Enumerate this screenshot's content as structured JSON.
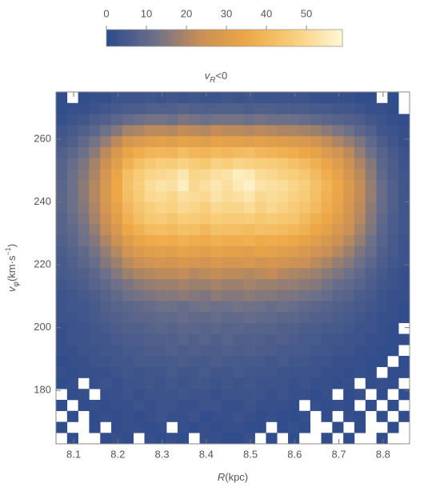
{
  "chart_data": {
    "type": "heatmap",
    "title": {
      "main": "v",
      "sub": "R",
      "tail": "<0"
    },
    "x_label": {
      "main": "R",
      "tail": "(kpc)"
    },
    "y_label": {
      "main": "v",
      "sub": "φ",
      "unit": "(km·s",
      "sup": "−1",
      "close": ")"
    },
    "xlim": [
      8.06,
      8.86
    ],
    "ylim": [
      163,
      275
    ],
    "xticks": [
      8.1,
      8.2,
      8.3,
      8.4,
      8.5,
      8.6,
      8.7,
      8.8
    ],
    "yticks": [
      180,
      200,
      220,
      240,
      260
    ],
    "x_edges": [
      8.06,
      8.085,
      8.11,
      8.135,
      8.16,
      8.185,
      8.21,
      8.235,
      8.26,
      8.285,
      8.31,
      8.335,
      8.36,
      8.385,
      8.41,
      8.435,
      8.46,
      8.485,
      8.51,
      8.535,
      8.56,
      8.585,
      8.61,
      8.635,
      8.66,
      8.685,
      8.71,
      8.735,
      8.76,
      8.785,
      8.81,
      8.835,
      8.86
    ],
    "y_edges": [
      163,
      166.5,
      170,
      173.5,
      177,
      180.5,
      184,
      187.5,
      191,
      194.5,
      198,
      201.5,
      205,
      208.5,
      212,
      215.5,
      219,
      222.5,
      226,
      229.5,
      233,
      236.5,
      240,
      243.5,
      247,
      250.5,
      254,
      257.5,
      261,
      264.5,
      268,
      271.5,
      275
    ],
    "colorbar": {
      "lim": [
        0,
        59
      ],
      "ticks": [
        0,
        10,
        20,
        30,
        40,
        50
      ]
    },
    "colorscale": [
      "#2c4a8c",
      "#6a6f8a",
      "#c98f55",
      "#eea847",
      "#f8cf7c",
      "#fff7d6"
    ],
    "values": [
      [
        null,
        1,
        null,
        null,
        1,
        2,
        1,
        null,
        2,
        1,
        2,
        1,
        null,
        2,
        2,
        1,
        1,
        2,
        null,
        1,
        null,
        1,
        null,
        null,
        1,
        null,
        1,
        null,
        null,
        1,
        null,
        null
      ],
      [
        1,
        null,
        null,
        1,
        null,
        1,
        2,
        2,
        1,
        2,
        null,
        2,
        1,
        2,
        1,
        2,
        2,
        1,
        1,
        null,
        1,
        2,
        1,
        null,
        null,
        1,
        null,
        1,
        null,
        null,
        1,
        null
      ],
      [
        null,
        1,
        null,
        1,
        2,
        1,
        2,
        1,
        2,
        3,
        2,
        2,
        3,
        1,
        2,
        2,
        3,
        2,
        1,
        2,
        1,
        1,
        2,
        null,
        1,
        null,
        2,
        1,
        null,
        1,
        null,
        1
      ],
      [
        1,
        null,
        1,
        2,
        1,
        2,
        2,
        3,
        2,
        3,
        3,
        2,
        2,
        3,
        3,
        2,
        2,
        3,
        2,
        2,
        2,
        1,
        null,
        2,
        1,
        2,
        1,
        null,
        1,
        null,
        1,
        null
      ],
      [
        null,
        1,
        2,
        null,
        2,
        2,
        3,
        2,
        3,
        3,
        3,
        4,
        3,
        3,
        2,
        3,
        3,
        3,
        3,
        2,
        3,
        2,
        2,
        1,
        2,
        null,
        1,
        2,
        null,
        1,
        null,
        1
      ],
      [
        1,
        2,
        null,
        2,
        3,
        2,
        3,
        3,
        4,
        3,
        4,
        3,
        4,
        4,
        3,
        4,
        3,
        4,
        3,
        3,
        3,
        2,
        3,
        2,
        2,
        1,
        2,
        null,
        1,
        2,
        1,
        null
      ],
      [
        2,
        1,
        2,
        2,
        2,
        3,
        4,
        3,
        4,
        4,
        5,
        4,
        4,
        5,
        4,
        4,
        5,
        4,
        4,
        4,
        3,
        3,
        3,
        3,
        2,
        2,
        1,
        2,
        1,
        null,
        1,
        1
      ],
      [
        1,
        2,
        2,
        3,
        3,
        4,
        4,
        5,
        5,
        5,
        5,
        6,
        5,
        5,
        6,
        5,
        5,
        5,
        5,
        4,
        5,
        4,
        4,
        3,
        3,
        2,
        2,
        2,
        1,
        1,
        null,
        1
      ],
      [
        2,
        2,
        3,
        3,
        4,
        4,
        5,
        5,
        6,
        6,
        7,
        6,
        7,
        6,
        6,
        7,
        6,
        7,
        6,
        6,
        5,
        5,
        5,
        4,
        4,
        3,
        3,
        2,
        2,
        1,
        1,
        null
      ],
      [
        2,
        3,
        3,
        4,
        4,
        5,
        6,
        6,
        7,
        7,
        7,
        8,
        7,
        8,
        7,
        8,
        7,
        7,
        7,
        6,
        7,
        6,
        5,
        5,
        4,
        4,
        3,
        3,
        2,
        2,
        1,
        1
      ],
      [
        2,
        3,
        3,
        4,
        5,
        6,
        7,
        7,
        8,
        9,
        8,
        9,
        9,
        8,
        9,
        8,
        9,
        8,
        8,
        8,
        7,
        7,
        6,
        6,
        5,
        5,
        4,
        3,
        3,
        2,
        1,
        null
      ],
      [
        3,
        3,
        4,
        5,
        6,
        7,
        8,
        9,
        9,
        10,
        10,
        11,
        10,
        10,
        11,
        10,
        10,
        11,
        10,
        10,
        9,
        9,
        8,
        7,
        7,
        6,
        5,
        4,
        3,
        2,
        2,
        1
      ],
      [
        3,
        4,
        4,
        5,
        7,
        8,
        9,
        10,
        11,
        12,
        12,
        11,
        12,
        13,
        12,
        12,
        13,
        12,
        12,
        11,
        12,
        11,
        10,
        9,
        8,
        7,
        6,
        5,
        4,
        3,
        2,
        1
      ],
      [
        3,
        4,
        5,
        6,
        8,
        10,
        12,
        13,
        14,
        15,
        15,
        16,
        15,
        14,
        16,
        15,
        15,
        16,
        15,
        15,
        14,
        14,
        13,
        12,
        11,
        9,
        8,
        6,
        5,
        3,
        2,
        2
      ],
      [
        4,
        5,
        6,
        8,
        10,
        12,
        14,
        16,
        17,
        18,
        18,
        19,
        18,
        18,
        19,
        18,
        18,
        19,
        18,
        18,
        17,
        17,
        16,
        15,
        13,
        11,
        10,
        8,
        6,
        4,
        3,
        2
      ],
      [
        5,
        6,
        7,
        9,
        12,
        15,
        18,
        20,
        21,
        22,
        22,
        23,
        21,
        22,
        23,
        22,
        22,
        21,
        22,
        23,
        21,
        20,
        19,
        18,
        16,
        14,
        12,
        10,
        7,
        5,
        3,
        2
      ],
      [
        5,
        7,
        9,
        11,
        15,
        18,
        22,
        24,
        26,
        27,
        26,
        28,
        27,
        26,
        28,
        27,
        27,
        28,
        26,
        27,
        26,
        25,
        24,
        22,
        20,
        17,
        15,
        12,
        9,
        6,
        4,
        3
      ],
      [
        6,
        8,
        10,
        13,
        17,
        21,
        26,
        29,
        31,
        32,
        31,
        33,
        32,
        31,
        33,
        32,
        32,
        31,
        33,
        32,
        31,
        30,
        28,
        26,
        24,
        21,
        18,
        14,
        11,
        7,
        5,
        3
      ],
      [
        7,
        9,
        12,
        15,
        20,
        25,
        30,
        34,
        36,
        37,
        36,
        38,
        37,
        36,
        38,
        37,
        37,
        38,
        36,
        37,
        36,
        35,
        33,
        31,
        28,
        25,
        21,
        17,
        12,
        8,
        5,
        3
      ],
      [
        8,
        10,
        13,
        17,
        23,
        28,
        35,
        38,
        41,
        42,
        41,
        43,
        42,
        40,
        43,
        42,
        42,
        41,
        43,
        42,
        41,
        40,
        38,
        35,
        32,
        28,
        24,
        19,
        14,
        9,
        6,
        4
      ],
      [
        8,
        11,
        14,
        19,
        25,
        31,
        38,
        42,
        45,
        46,
        44,
        47,
        46,
        45,
        47,
        46,
        46,
        47,
        45,
        46,
        45,
        44,
        41,
        38,
        35,
        31,
        26,
        21,
        15,
        10,
        6,
        4
      ],
      [
        9,
        12,
        15,
        20,
        27,
        33,
        40,
        44,
        47,
        49,
        48,
        50,
        49,
        47,
        50,
        49,
        49,
        51,
        48,
        50,
        48,
        46,
        44,
        41,
        37,
        33,
        27,
        22,
        16,
        11,
        7,
        4
      ],
      [
        9,
        12,
        16,
        21,
        28,
        35,
        42,
        46,
        50,
        51,
        49,
        52,
        51,
        50,
        53,
        51,
        52,
        54,
        50,
        51,
        50,
        48,
        46,
        42,
        38,
        34,
        28,
        23,
        17,
        11,
        7,
        4
      ],
      [
        9,
        12,
        16,
        21,
        28,
        35,
        43,
        47,
        51,
        53,
        52,
        56,
        50,
        52,
        54,
        52,
        55,
        57,
        53,
        52,
        51,
        49,
        47,
        43,
        39,
        35,
        29,
        23,
        17,
        11,
        7,
        4
      ],
      [
        8,
        12,
        15,
        20,
        27,
        34,
        42,
        46,
        49,
        50,
        51,
        54,
        49,
        50,
        52,
        53,
        56,
        55,
        51,
        50,
        48,
        47,
        45,
        41,
        37,
        33,
        27,
        22,
        16,
        10,
        6,
        4
      ],
      [
        8,
        11,
        14,
        19,
        25,
        31,
        38,
        42,
        45,
        47,
        46,
        48,
        46,
        45,
        48,
        47,
        49,
        48,
        47,
        46,
        45,
        43,
        41,
        38,
        34,
        30,
        25,
        20,
        15,
        9,
        6,
        3
      ],
      [
        7,
        9,
        12,
        16,
        22,
        28,
        34,
        37,
        39,
        40,
        39,
        42,
        40,
        39,
        41,
        40,
        41,
        42,
        40,
        39,
        38,
        37,
        35,
        33,
        29,
        26,
        22,
        17,
        12,
        8,
        5,
        3
      ],
      [
        5,
        7,
        10,
        13,
        17,
        22,
        27,
        29,
        31,
        32,
        31,
        33,
        32,
        31,
        33,
        32,
        32,
        31,
        32,
        31,
        30,
        29,
        28,
        26,
        23,
        20,
        17,
        14,
        10,
        6,
        4,
        2
      ],
      [
        4,
        5,
        7,
        9,
        12,
        15,
        19,
        20,
        22,
        22,
        21,
        23,
        22,
        21,
        23,
        22,
        22,
        21,
        22,
        21,
        20,
        20,
        19,
        18,
        16,
        14,
        12,
        9,
        7,
        4,
        3,
        2
      ],
      [
        2,
        3,
        4,
        6,
        7,
        9,
        11,
        12,
        13,
        13,
        12,
        14,
        13,
        12,
        13,
        13,
        13,
        12,
        13,
        12,
        12,
        12,
        11,
        10,
        9,
        8,
        7,
        6,
        4,
        3,
        2,
        1
      ],
      [
        1,
        2,
        2,
        3,
        4,
        5,
        6,
        6,
        7,
        7,
        7,
        8,
        7,
        7,
        7,
        7,
        7,
        6,
        7,
        7,
        6,
        6,
        6,
        5,
        5,
        4,
        4,
        3,
        2,
        2,
        1,
        null
      ],
      [
        1,
        null,
        1,
        2,
        2,
        3,
        3,
        3,
        4,
        3,
        4,
        3,
        4,
        3,
        3,
        4,
        3,
        4,
        3,
        3,
        3,
        3,
        3,
        2,
        2,
        2,
        2,
        1,
        1,
        null,
        1,
        null
      ]
    ]
  }
}
